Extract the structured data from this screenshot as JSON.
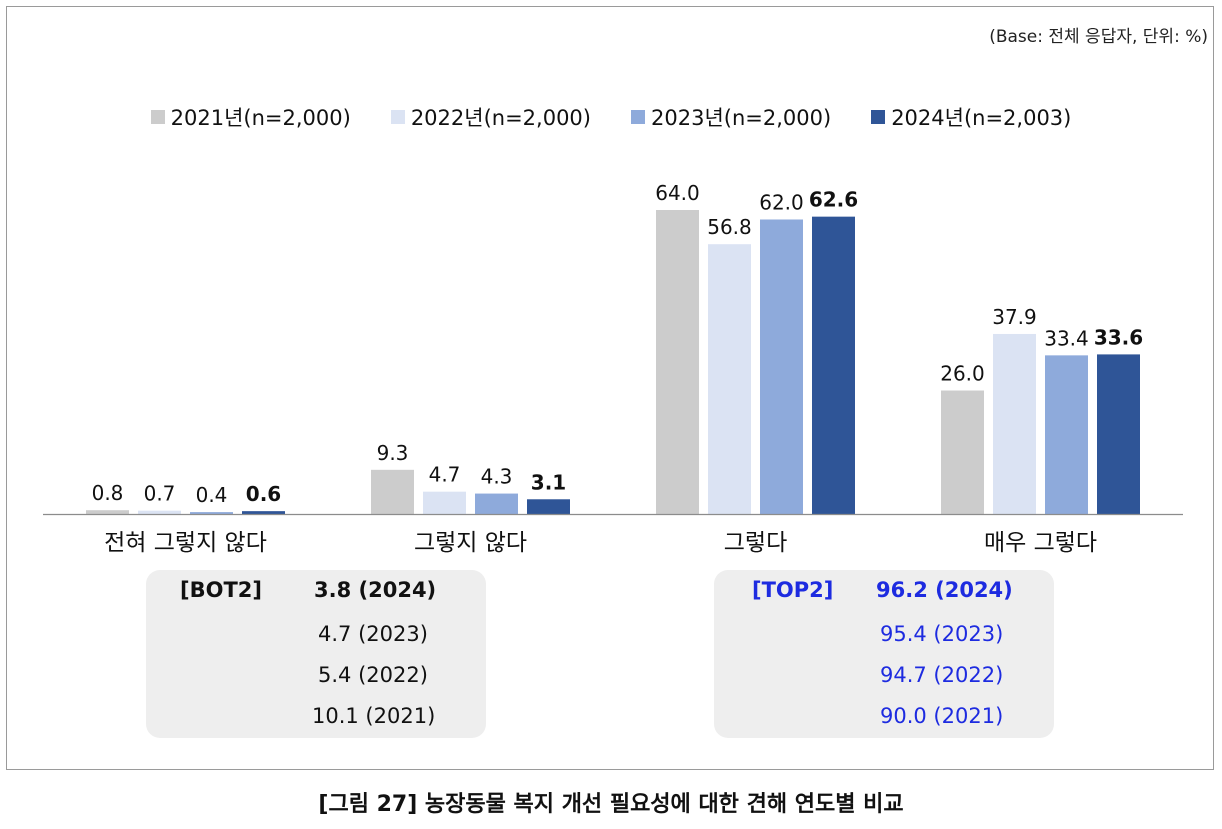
{
  "base_note": "(Base: 전체 응답자, 단위: %)",
  "caption": "[그림 27] 농장동물 복지 개선 필요성에 대한 견해 연도별 비교",
  "chart_data": {
    "type": "bar",
    "categories": [
      "전혀 그렇지 않다",
      "그렇지 않다",
      "그렇다",
      "매우 그렇다"
    ],
    "series": [
      {
        "name": "2021년(n=2,000)",
        "color": "#cccccc",
        "values": [
          0.8,
          9.3,
          64.0,
          26.0
        ]
      },
      {
        "name": "2022년(n=2,000)",
        "color": "#dbe3f3",
        "values": [
          0.7,
          4.7,
          56.8,
          37.9
        ]
      },
      {
        "name": "2023년(n=2,000)",
        "color": "#8eaadb",
        "values": [
          0.4,
          4.3,
          62.0,
          33.4
        ]
      },
      {
        "name": "2024년(n=2,003)",
        "color": "#2f5597",
        "values": [
          0.6,
          3.1,
          62.6,
          33.6
        ]
      }
    ],
    "ylim": [
      0,
      70
    ],
    "legend": "top",
    "grid": false
  },
  "summary": {
    "bot2": {
      "label": "[BOT2]",
      "lines": [
        "3.8 (2024)",
        "4.7 (2023)",
        "5.4 (2022)",
        "10.1 (2021)"
      ]
    },
    "top2": {
      "label": "[TOP2]",
      "lines": [
        "96.2 (2024)",
        "95.4 (2023)",
        "94.7 (2022)",
        "90.0 (2021)"
      ]
    }
  }
}
